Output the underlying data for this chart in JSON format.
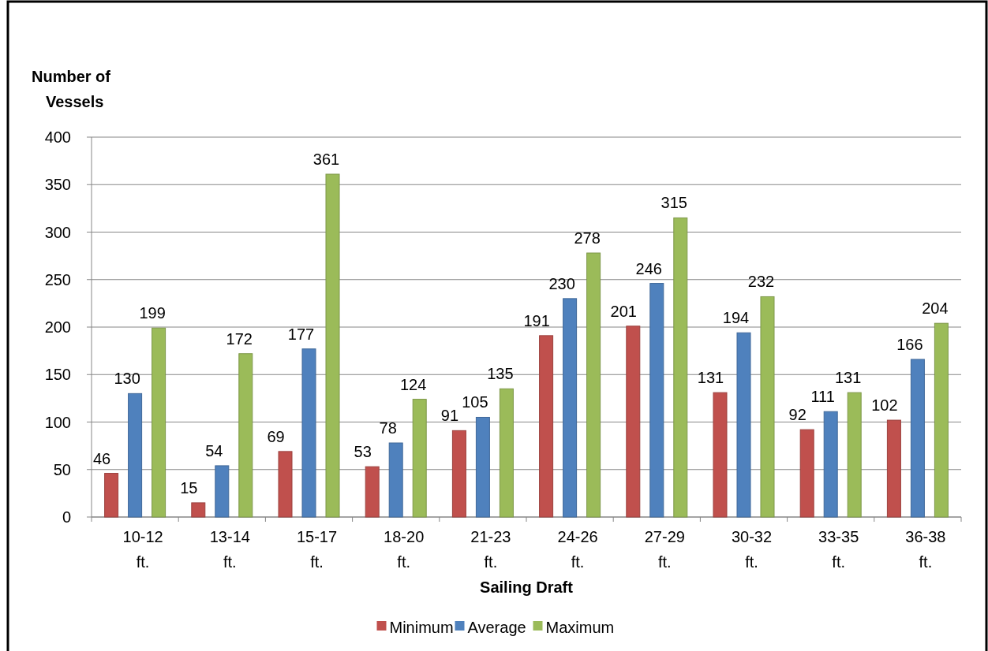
{
  "chart_data": {
    "type": "bar",
    "xlabel": "Sailing Draft",
    "ylabel": "Number of Vessels",
    "categories": [
      "10-12 ft.",
      "13-14 ft.",
      "15-17 ft.",
      "18-20 ft.",
      "21-23 ft.",
      "24-26 ft.",
      "27-29 ft.",
      "30-32 ft.",
      "33-35 ft.",
      "36-38 ft."
    ],
    "series": [
      {
        "name": "Minimum",
        "color": "#c0504d",
        "values": [
          46,
          15,
          69,
          53,
          91,
          191,
          201,
          131,
          92,
          102
        ]
      },
      {
        "name": "Average",
        "color": "#4f81bd",
        "values": [
          130,
          54,
          177,
          78,
          105,
          230,
          246,
          194,
          111,
          166
        ]
      },
      {
        "name": "Maximum",
        "color": "#9bbb59",
        "values": [
          199,
          172,
          361,
          124,
          135,
          278,
          315,
          232,
          131,
          204
        ]
      }
    ],
    "ylim": [
      0,
      400
    ],
    "yticks": [
      0,
      50,
      100,
      150,
      200,
      250,
      300,
      350,
      400
    ],
    "grid": "y",
    "legend": "bottom",
    "data_labels": true
  }
}
